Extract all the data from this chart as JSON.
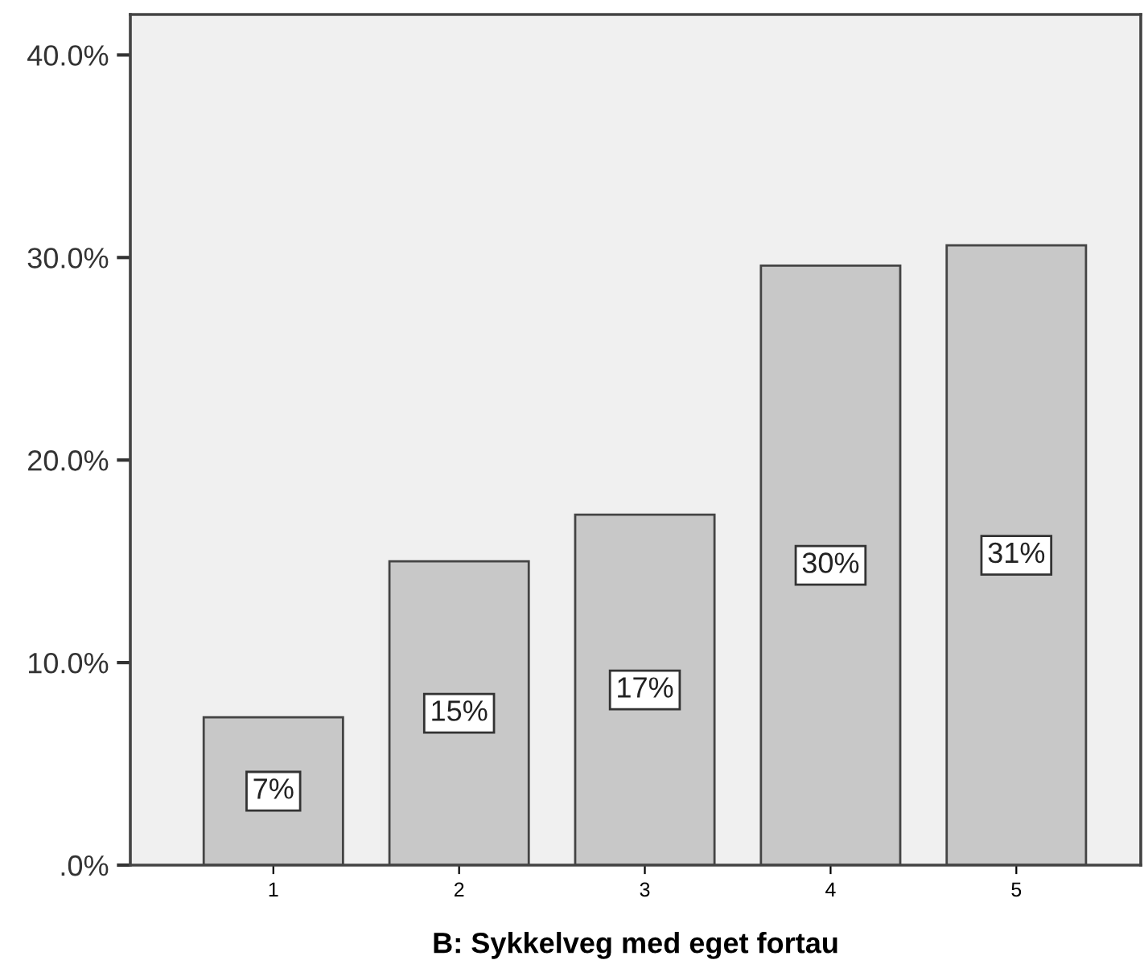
{
  "chart_data": {
    "type": "bar",
    "xlabel": "B: Sykkelveg med eget fortau",
    "categories": [
      "1",
      "2",
      "3",
      "4",
      "5"
    ],
    "values": [
      7.3,
      15.0,
      17.3,
      29.6,
      30.6
    ],
    "value_labels": [
      "7%",
      "15%",
      "17%",
      "30%",
      "31%"
    ],
    "color": "#c8c8c8",
    "ylim": [
      0,
      42
    ],
    "yticks": [
      {
        "value": 0,
        "label": ".0%"
      },
      {
        "value": 10,
        "label": "10.0%"
      },
      {
        "value": 20,
        "label": "20.0%"
      },
      {
        "value": 30,
        "label": "30.0%"
      },
      {
        "value": 40,
        "label": "40.0%"
      }
    ],
    "grid": false
  }
}
